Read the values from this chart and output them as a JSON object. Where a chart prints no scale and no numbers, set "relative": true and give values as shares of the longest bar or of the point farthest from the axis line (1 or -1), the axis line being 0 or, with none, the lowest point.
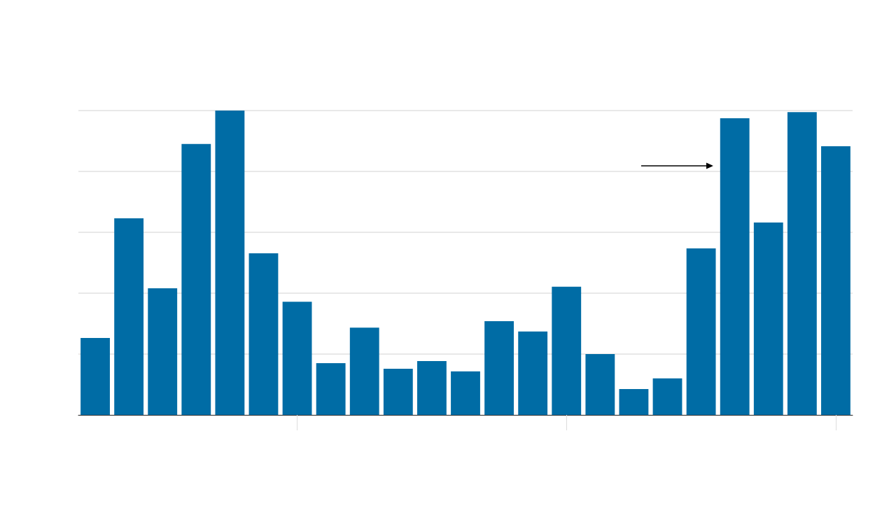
{
  "chart_data": {
    "type": "bar",
    "relative": true,
    "grid": "y",
    "color": "#006ca5",
    "categories": [
      null,
      null,
      null,
      null,
      null,
      null,
      null,
      null,
      null,
      null,
      null,
      null,
      null,
      null,
      null,
      null,
      null,
      null,
      null,
      null,
      null,
      null,
      null
    ],
    "values": [
      0.253,
      0.646,
      0.416,
      0.89,
      1,
      0.531,
      0.372,
      0.17,
      0.287,
      0.152,
      0.177,
      0.143,
      0.308,
      0.274,
      0.421,
      0.2,
      0.085,
      0.12,
      0.547,
      0.975,
      0.632,
      0.995,
      0.883
    ]
  }
}
